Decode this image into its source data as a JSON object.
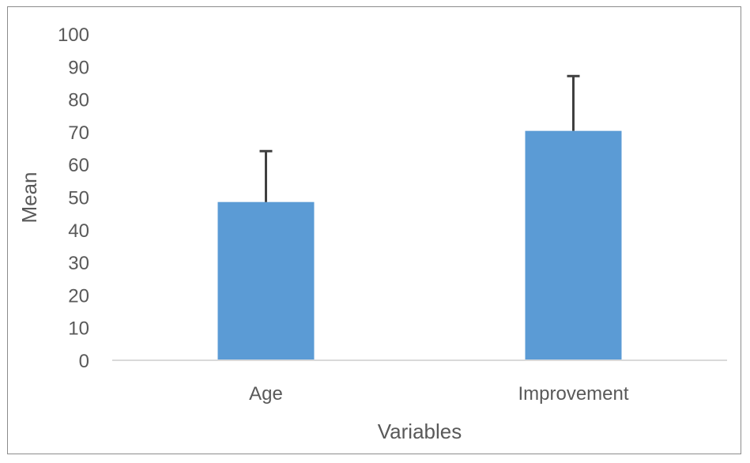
{
  "chart_data": {
    "type": "bar",
    "categories": [
      "Age",
      "Improvement"
    ],
    "values": [
      48.5,
      70.3
    ],
    "error_plus": [
      15.6,
      16.8
    ],
    "xlabel": "Variables",
    "ylabel": "Mean",
    "ylim": [
      0,
      100
    ],
    "yticks": [
      "0",
      "10",
      "20",
      "30",
      "40",
      "50",
      "60",
      "70",
      "80",
      "90",
      "100"
    ],
    "grid": false,
    "legend": "none",
    "bar_color": "#5b9bd5",
    "error_bar_color": "#404040",
    "axis_color": "#d9d9d9"
  }
}
